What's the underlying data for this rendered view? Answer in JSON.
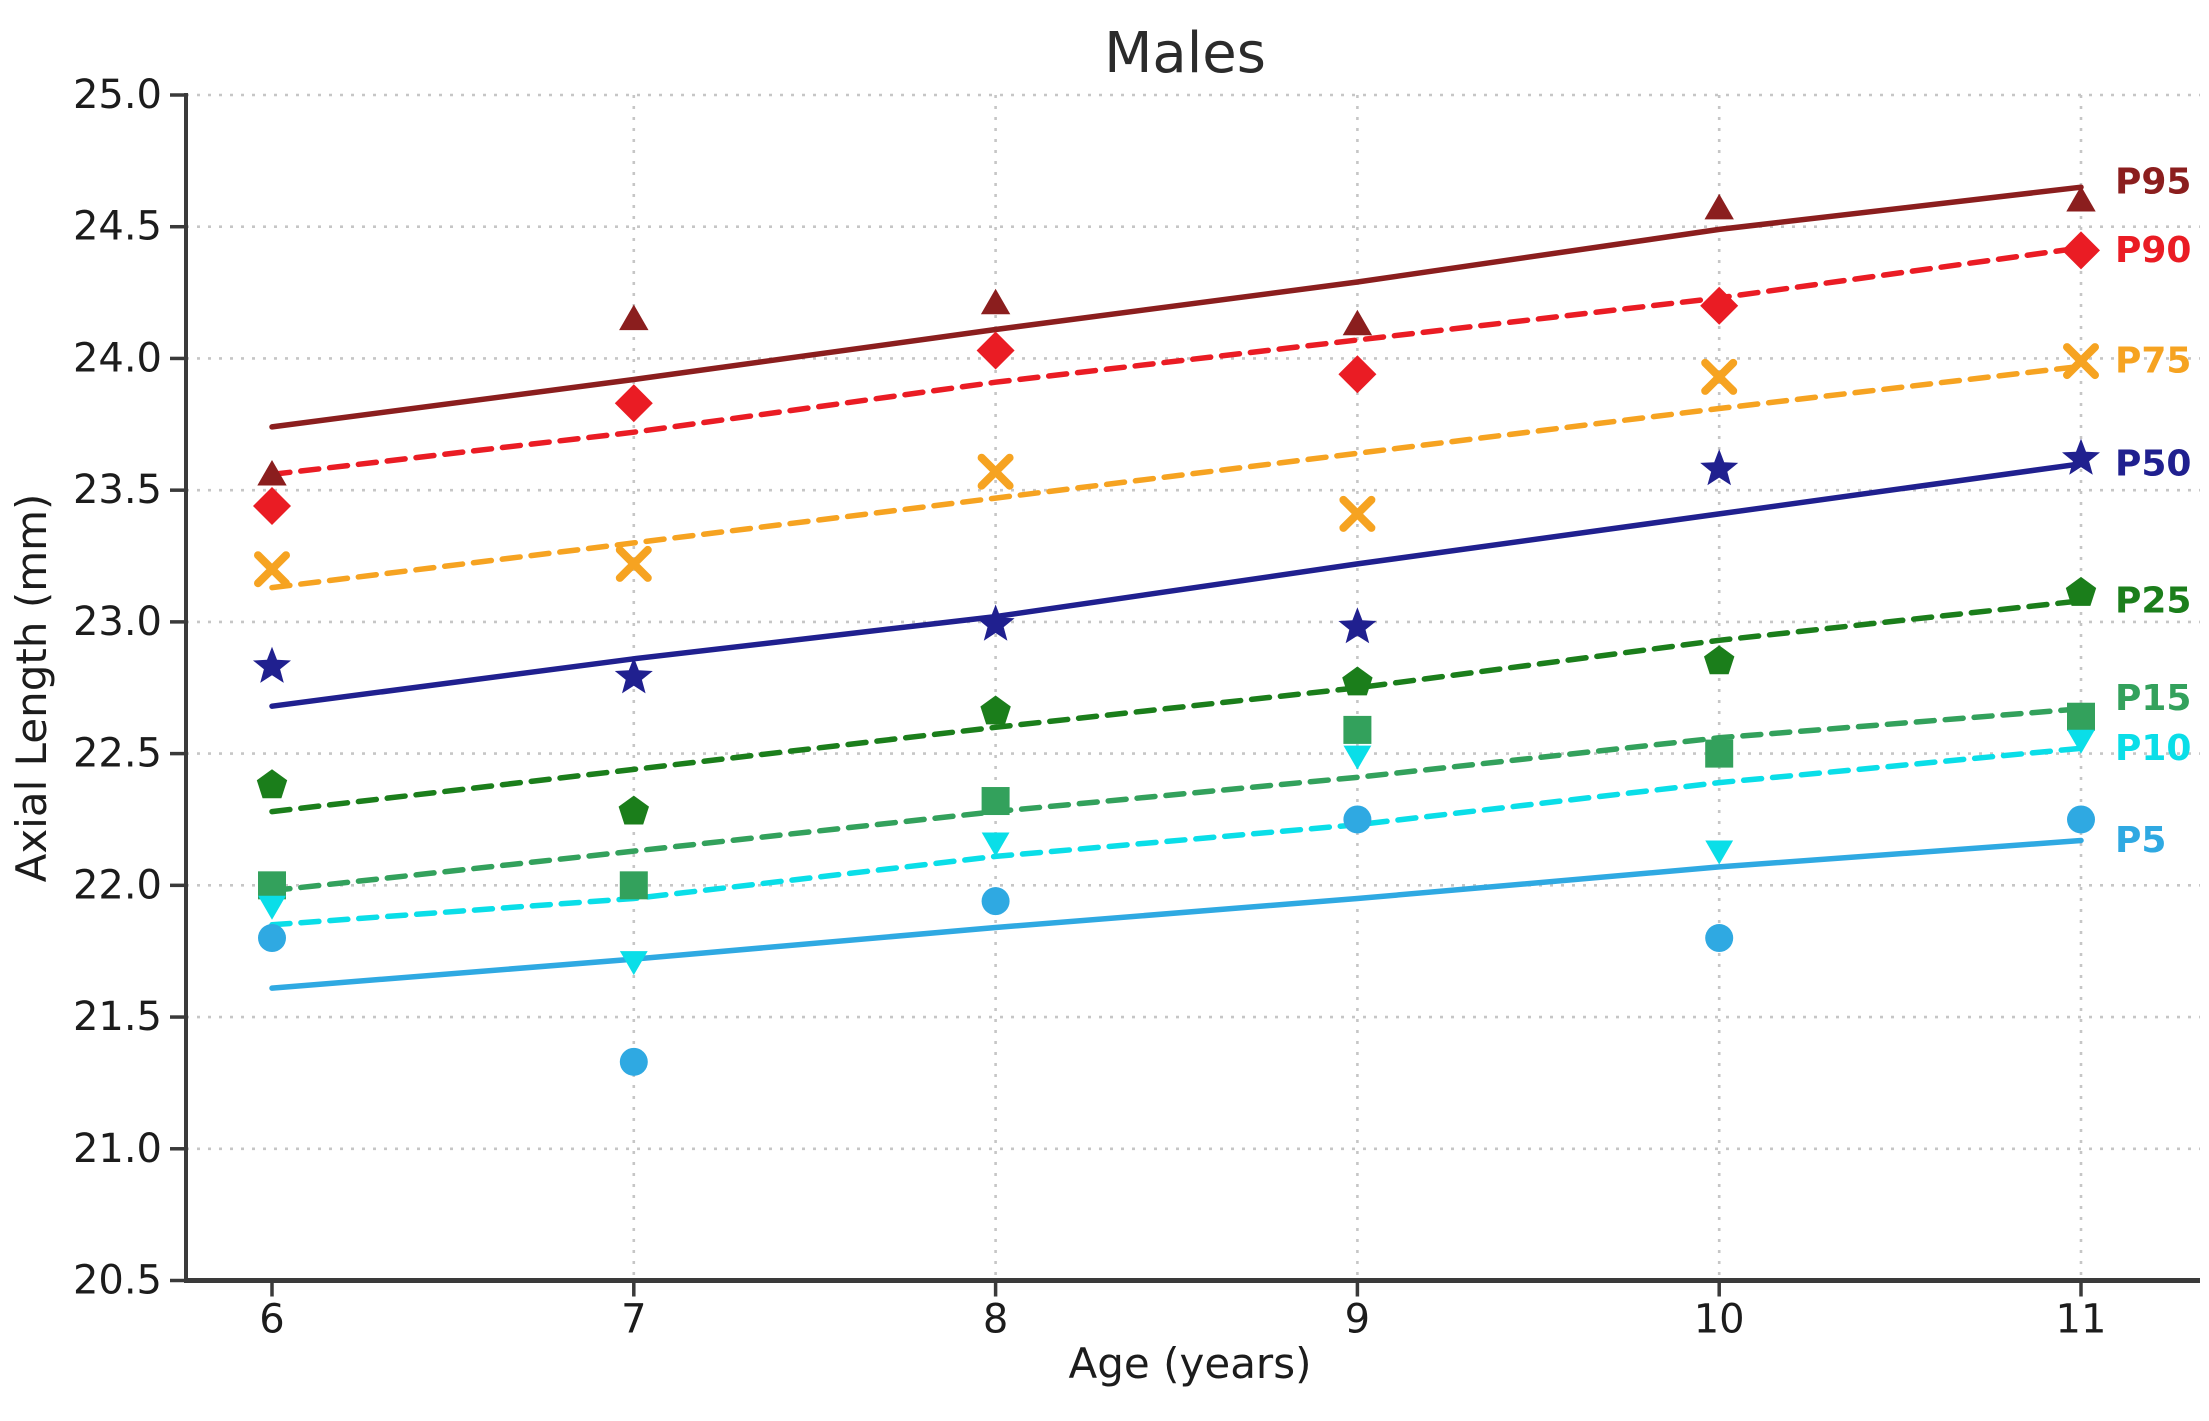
{
  "chart_data": {
    "type": "scatter",
    "title": "Males",
    "xlabel": "Age (years)",
    "ylabel": "Axial Length (mm)",
    "x": [
      6,
      7,
      8,
      9,
      10,
      11
    ],
    "xlim": [
      5.76,
      11.33
    ],
    "ylim": [
      20.5,
      25.0
    ],
    "xticks": [
      "6",
      "7",
      "8",
      "9",
      "10",
      "11"
    ],
    "yticks": [
      "20.5",
      "21.0",
      "21.5",
      "22.0",
      "22.5",
      "23.0",
      "23.5",
      "24.0",
      "24.5",
      "25.0"
    ],
    "grid": {
      "horizontal": [
        21.0,
        21.5,
        22.0,
        22.5,
        23.0,
        23.5,
        24.0,
        24.5,
        25.0
      ],
      "vertical": [
        7,
        8,
        9,
        10,
        11
      ]
    },
    "legend_position": "right-end-labels",
    "series": [
      {
        "name": "P95",
        "color": "#8B1E1E",
        "marker": "triangle-up",
        "line_style": "solid",
        "label_v": 24.67,
        "points": [
          23.55,
          24.14,
          24.2,
          24.12,
          24.56,
          24.59
        ],
        "trend": [
          23.74,
          23.92,
          24.11,
          24.29,
          24.49,
          24.65
        ]
      },
      {
        "name": "P90",
        "color": "#EA1C24",
        "marker": "diamond",
        "line_style": "dashed",
        "label_v": 24.41,
        "points": [
          23.44,
          23.83,
          24.03,
          23.94,
          24.2,
          24.41
        ],
        "trend": [
          23.56,
          23.72,
          23.91,
          24.07,
          24.23,
          24.42
        ]
      },
      {
        "name": "P75",
        "color": "#F6A321",
        "marker": "x",
        "line_style": "dashed",
        "label_v": 23.99,
        "points": [
          23.2,
          23.22,
          23.57,
          23.41,
          23.93,
          23.99
        ],
        "trend": [
          23.13,
          23.3,
          23.47,
          23.64,
          23.81,
          23.97
        ]
      },
      {
        "name": "P50",
        "color": "#20208F",
        "marker": "star",
        "line_style": "solid",
        "label_v": 23.6,
        "points": [
          22.83,
          22.79,
          22.99,
          22.98,
          23.58,
          23.62
        ],
        "trend": [
          22.68,
          22.86,
          23.02,
          23.22,
          23.41,
          23.6
        ]
      },
      {
        "name": "P25",
        "color": "#1B7E1B",
        "marker": "pentagon",
        "line_style": "dashed",
        "label_v": 23.08,
        "points": [
          22.38,
          22.28,
          22.66,
          22.77,
          22.85,
          23.11
        ],
        "trend": [
          22.28,
          22.44,
          22.6,
          22.75,
          22.93,
          23.08
        ]
      },
      {
        "name": "P15",
        "color": "#33A15C",
        "marker": "square",
        "line_style": "dashed",
        "label_v": 22.71,
        "points": [
          22.0,
          22.0,
          22.32,
          22.59,
          22.5,
          22.64
        ],
        "trend": [
          21.98,
          22.13,
          22.28,
          22.41,
          22.56,
          22.67
        ]
      },
      {
        "name": "P10",
        "color": "#0ADEE8",
        "marker": "triangle-down",
        "line_style": "dashed",
        "label_v": 22.52,
        "points": [
          21.93,
          21.72,
          22.17,
          22.5,
          22.14,
          22.56
        ],
        "trend": [
          21.85,
          21.95,
          22.11,
          22.23,
          22.39,
          22.52
        ]
      },
      {
        "name": "P5",
        "color": "#2FA9E2",
        "marker": "circle",
        "line_style": "solid",
        "label_v": 22.17,
        "points": [
          21.8,
          21.33,
          21.94,
          22.25,
          21.8,
          22.25
        ],
        "trend": [
          21.61,
          21.72,
          21.84,
          21.95,
          22.07,
          22.17
        ]
      }
    ]
  }
}
